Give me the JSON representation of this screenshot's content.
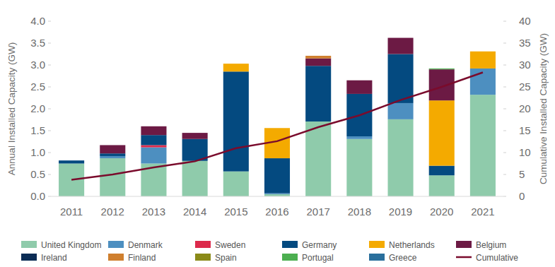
{
  "chart_data": {
    "type": "bar",
    "stacked": true,
    "grid": false,
    "legend": "bottom",
    "y_label": "Annual Installed Capacity (GW)",
    "y2_label": "Cumulative Installed Capacity (GW)",
    "categories": [
      "2011",
      "2012",
      "2013",
      "2014",
      "2015",
      "2016",
      "2017",
      "2018",
      "2019",
      "2020",
      "2021"
    ],
    "ylim": [
      0,
      4
    ],
    "yticks": [
      {
        "value": 0,
        "label": "0.0"
      },
      0.5,
      {
        "value": 1,
        "label": "1.0"
      },
      1.5,
      {
        "value": 2,
        "label": "2.0"
      },
      2.5,
      {
        "value": 3,
        "label": "3.0"
      },
      3.5,
      {
        "value": 4,
        "label": "4.0"
      }
    ],
    "y2lim": [
      0,
      40
    ],
    "y2ticks": [
      0,
      5,
      10,
      15,
      20,
      25,
      30,
      35,
      40
    ],
    "series": [
      {
        "name": "United Kingdom",
        "color": "#8fcbab",
        "values": [
          0.75,
          0.87,
          0.75,
          0.81,
          0.57,
          0.05,
          1.71,
          1.31,
          1.76,
          0.48,
          2.32
        ]
      },
      {
        "name": "Denmark",
        "color": "#4d8fc0",
        "values": [
          0,
          0.05,
          0.37,
          0,
          0,
          0.02,
          0,
          0.06,
          0.37,
          0,
          0.6
        ]
      },
      {
        "name": "Sweden",
        "color": "#dc2a4b",
        "values": [
          0,
          0,
          0.05,
          0,
          0,
          0,
          0,
          0,
          0,
          0,
          0
        ]
      },
      {
        "name": "Germany",
        "color": "#044a80",
        "values": [
          0.07,
          0.06,
          0.23,
          0.5,
          2.28,
          0.8,
          1.27,
          0.97,
          1.12,
          0.22,
          0
        ]
      },
      {
        "name": "Netherlands",
        "color": "#f4aa00",
        "values": [
          0,
          0,
          0,
          0,
          0.18,
          0.69,
          0,
          0,
          0,
          1.49,
          0.39
        ]
      },
      {
        "name": "Belgium",
        "color": "#6c1a44",
        "values": [
          0,
          0.19,
          0.2,
          0.14,
          0,
          0,
          0.17,
          0.31,
          0.37,
          0.71,
          0
        ]
      },
      {
        "name": "Ireland",
        "color": "#0b2c55",
        "values": [
          0,
          0,
          0,
          0,
          0,
          0,
          0,
          0,
          0,
          0,
          0
        ]
      },
      {
        "name": "Finland",
        "color": "#cf7f2e",
        "values": [
          0,
          0,
          0,
          0,
          0,
          0,
          0.06,
          0,
          0,
          0,
          0
        ]
      },
      {
        "name": "Spain",
        "color": "#8a8a18",
        "values": [
          0,
          0,
          0,
          0,
          0,
          0,
          0,
          0,
          0,
          0,
          0
        ]
      },
      {
        "name": "Portugal",
        "color": "#4caf50",
        "values": [
          0,
          0,
          0,
          0,
          0,
          0,
          0,
          0,
          0,
          0.02,
          0
        ]
      },
      {
        "name": "Greece",
        "color": "#2a6f9c",
        "values": [
          0,
          0,
          0,
          0,
          0,
          0,
          0,
          0,
          0,
          0,
          0
        ]
      },
      {
        "name": "Cumulative",
        "type": "line",
        "axis": "y2",
        "color": "#7a0b2c",
        "values": [
          3.8,
          5.0,
          6.6,
          8.0,
          11.0,
          12.6,
          15.8,
          18.5,
          22.0,
          25.0,
          28.3
        ]
      }
    ]
  }
}
